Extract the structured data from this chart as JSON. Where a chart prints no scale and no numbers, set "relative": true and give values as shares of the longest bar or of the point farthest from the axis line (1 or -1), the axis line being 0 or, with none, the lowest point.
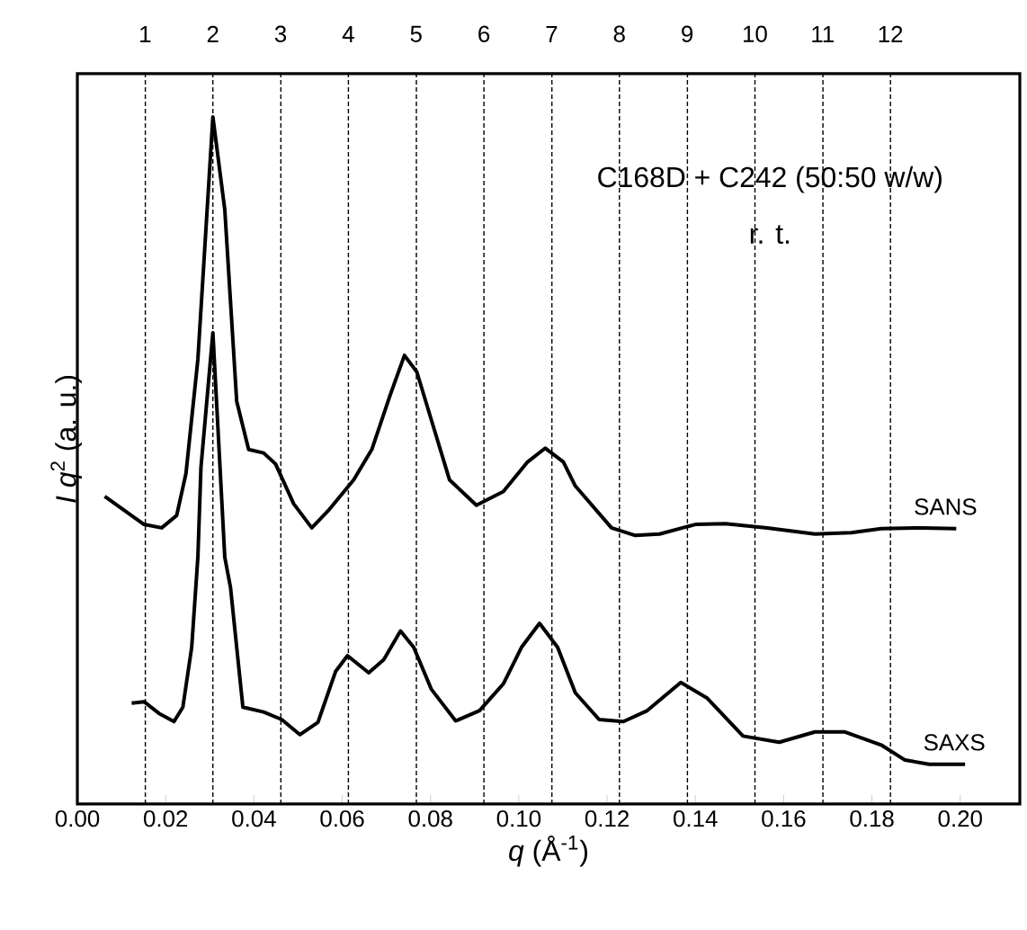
{
  "chart_data": {
    "type": "line",
    "relative": true,
    "xlabel": "*q* (Å$^{-1}$)",
    "ylabel": "*I q*$^{2}$ (a. u.)",
    "xlim": [
      0,
      0.2135
    ],
    "xticks": [
      {
        "value": 0,
        "label": "0.00"
      },
      {
        "value": 0.02,
        "label": "0.02"
      },
      {
        "value": 0.04,
        "label": "0.04"
      },
      {
        "value": 0.06,
        "label": "0.06"
      },
      {
        "value": 0.08,
        "label": "0.08"
      },
      {
        "value": 0.1,
        "label": "0.10"
      },
      {
        "value": 0.12,
        "label": "0.12"
      },
      {
        "value": 0.14,
        "label": "0.14"
      },
      {
        "value": 0.16,
        "label": "0.16"
      },
      {
        "value": 0.18,
        "label": "0.18"
      },
      {
        "value": 0.2,
        "label": "0.20"
      }
    ],
    "tick_labels": "x",
    "marker": "none",
    "line_style": "solid",
    "legend": false,
    "grid": false,
    "annotations": [
      "C168D + C242 (50:50 w/w)",
      "r. t."
    ],
    "x2lim": [
      0,
      13.91
    ],
    "x2ticks": [
      1,
      2,
      3,
      4,
      5,
      6,
      7,
      8,
      9,
      10,
      11,
      12
    ],
    "ref_lines": [
      {
        "axis": "x",
        "value": 0.0154,
        "line_style": "dashed",
        "color": "#000000"
      },
      {
        "axis": "x",
        "value": 0.0307,
        "line_style": "dashed",
        "color": "#000000"
      },
      {
        "axis": "x",
        "value": 0.0461,
        "line_style": "dashed",
        "color": "#000000"
      },
      {
        "axis": "x",
        "value": 0.0614,
        "line_style": "dashed",
        "color": "#000000"
      },
      {
        "axis": "x",
        "value": 0.0768,
        "line_style": "dashed",
        "color": "#000000"
      },
      {
        "axis": "x",
        "value": 0.0921,
        "line_style": "dashed",
        "color": "#000000"
      },
      {
        "axis": "x",
        "value": 0.1075,
        "line_style": "dashed",
        "color": "#000000"
      },
      {
        "axis": "x",
        "value": 0.1228,
        "line_style": "dashed",
        "color": "#000000"
      },
      {
        "axis": "x",
        "value": 0.1382,
        "line_style": "dashed",
        "color": "#000000"
      },
      {
        "axis": "x",
        "value": 0.1535,
        "line_style": "dashed",
        "color": "#000000"
      },
      {
        "axis": "x",
        "value": 0.1689,
        "line_style": "dashed",
        "color": "#000000"
      },
      {
        "axis": "x",
        "value": 0.1842,
        "line_style": "dashed",
        "color": "#000000"
      }
    ],
    "series": [
      {
        "name": "SANS",
        "color": "#000000",
        "x": [
          0.0062,
          0.0151,
          0.0191,
          0.0225,
          0.0246,
          0.0273,
          0.0307,
          0.0334,
          0.0361,
          0.0388,
          0.0422,
          0.0449,
          0.049,
          0.0531,
          0.0571,
          0.0626,
          0.0667,
          0.0708,
          0.0741,
          0.0769,
          0.0802,
          0.0843,
          0.0904,
          0.0965,
          0.102,
          0.106,
          0.1101,
          0.1128,
          0.121,
          0.1264,
          0.1319,
          0.14,
          0.1468,
          0.1563,
          0.1671,
          0.1753,
          0.1821,
          0.1916,
          0.1991
        ],
        "values": [
          0.448,
          0.407,
          0.402,
          0.42,
          0.481,
          0.647,
          1.0,
          0.865,
          0.586,
          0.516,
          0.511,
          0.495,
          0.437,
          0.402,
          0.429,
          0.472,
          0.516,
          0.594,
          0.653,
          0.629,
          0.559,
          0.472,
          0.435,
          0.455,
          0.498,
          0.518,
          0.498,
          0.463,
          0.402,
          0.391,
          0.393,
          0.407,
          0.408,
          0.402,
          0.393,
          0.395,
          0.401,
          0.402,
          0.401
        ]
      },
      {
        "name": "SAXS",
        "color": "#000000",
        "x": [
          0.0123,
          0.0151,
          0.0185,
          0.0219,
          0.0239,
          0.0259,
          0.0273,
          0.028,
          0.0307,
          0.0334,
          0.0347,
          0.0375,
          0.0422,
          0.0463,
          0.0504,
          0.0545,
          0.0585,
          0.0612,
          0.066,
          0.0694,
          0.0732,
          0.0762,
          0.0802,
          0.0857,
          0.0911,
          0.0965,
          0.1006,
          0.1047,
          0.1088,
          0.1128,
          0.1182,
          0.1237,
          0.1291,
          0.1367,
          0.1427,
          0.1508,
          0.159,
          0.1671,
          0.1739,
          0.1821,
          0.1875,
          0.193,
          0.2011
        ],
        "values": [
          0.147,
          0.149,
          0.132,
          0.12,
          0.141,
          0.228,
          0.359,
          0.49,
          0.686,
          0.359,
          0.315,
          0.141,
          0.134,
          0.123,
          0.101,
          0.119,
          0.193,
          0.216,
          0.191,
          0.21,
          0.252,
          0.228,
          0.167,
          0.121,
          0.136,
          0.175,
          0.228,
          0.263,
          0.228,
          0.162,
          0.123,
          0.12,
          0.136,
          0.177,
          0.154,
          0.099,
          0.09,
          0.105,
          0.105,
          0.086,
          0.064,
          0.058,
          0.058
        ]
      }
    ]
  }
}
